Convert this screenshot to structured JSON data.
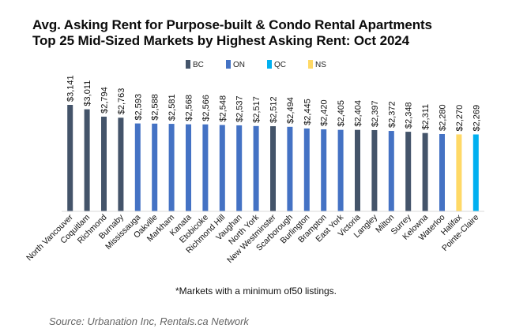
{
  "chart_data": {
    "type": "bar",
    "title": "Avg. Asking Rent for Purpose-built & Condo Rental Apartments",
    "subtitle": "Top 25 Mid-Sized Markets by Highest Asking Rent: Oct 2024",
    "xlabel": "",
    "ylabel": "",
    "ylim": [
      0,
      3300
    ],
    "grid": false,
    "legend_position": "top-center",
    "legend": [
      {
        "name": "BC",
        "color": "#44546a"
      },
      {
        "name": "ON",
        "color": "#4472c4"
      },
      {
        "name": "QC",
        "color": "#00b0f0"
      },
      {
        "name": "NS",
        "color": "#ffd966"
      }
    ],
    "categories": [
      "North Vancouver",
      "Coquitlam",
      "Richmond",
      "Burnaby",
      "Mississauga",
      "Oakville",
      "Markham",
      "Kanata",
      "Etobicoke",
      "Richmond Hill",
      "Vaughan",
      "North York",
      "New Westminster",
      "Scarborough",
      "Burlington",
      "Brampton",
      "East York",
      "Victoria",
      "Langley",
      "Milton",
      "Surrey",
      "Kelowna",
      "Waterloo",
      "Halifax",
      "Pointe-Claire"
    ],
    "values": [
      3141,
      3011,
      2794,
      2763,
      2593,
      2588,
      2581,
      2568,
      2566,
      2548,
      2537,
      2517,
      2512,
      2494,
      2445,
      2420,
      2405,
      2404,
      2397,
      2372,
      2348,
      2311,
      2280,
      2270,
      2269
    ],
    "value_labels": [
      "$3,141",
      "$3,011",
      "$2,794",
      "$2,763",
      "$2,593",
      "$2,588",
      "$2,581",
      "$2,568",
      "$2,566",
      "$2,548",
      "$2,537",
      "$2,517",
      "$2,512",
      "$2,494",
      "$2,445",
      "$2,420",
      "$2,405",
      "$2,404",
      "$2,397",
      "$2,372",
      "$2,348",
      "$2,311",
      "$2,280",
      "$2,270",
      "$2,269"
    ],
    "province": [
      "BC",
      "BC",
      "BC",
      "BC",
      "ON",
      "ON",
      "ON",
      "ON",
      "ON",
      "ON",
      "ON",
      "ON",
      "BC",
      "ON",
      "ON",
      "ON",
      "ON",
      "BC",
      "BC",
      "ON",
      "BC",
      "BC",
      "ON",
      "NS",
      "QC"
    ]
  },
  "note": "*Markets with a minimum of50 listings.",
  "source": "Source: Urbanation Inc, Rentals.ca Network"
}
